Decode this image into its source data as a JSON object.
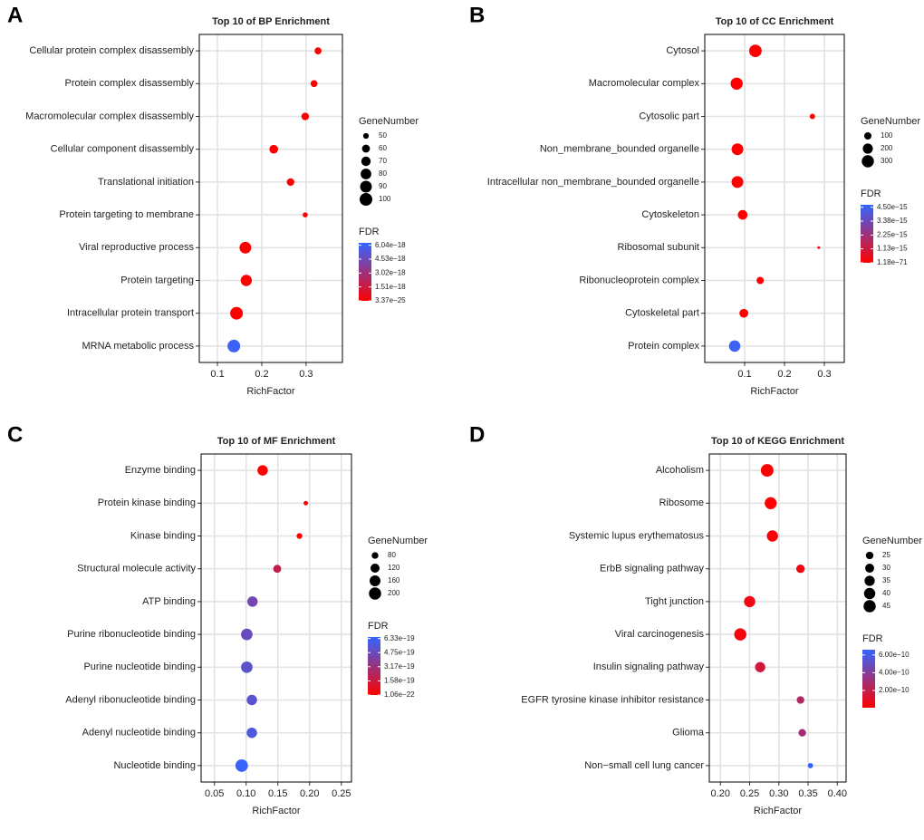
{
  "chart_data": [
    {
      "type": "bubble",
      "label": "A",
      "title": "Top 10 of BP Enrichment",
      "xlabel": "RichFactor",
      "categories": [
        "Cellular protein complex disassembly",
        "Protein complex disassembly",
        "Macromolecular complex disassembly",
        "Cellular component disassembly",
        "Translational initiation",
        "Protein targeting to membrane",
        "Viral reproductive process",
        "Protein targeting",
        "Intracellular protein transport",
        "MRNA metabolic process"
      ],
      "values": [
        0.327,
        0.318,
        0.298,
        0.227,
        0.265,
        0.298,
        0.163,
        0.165,
        0.143,
        0.137
      ],
      "sizes": [
        55,
        55,
        58,
        65,
        58,
        48,
        90,
        85,
        100,
        100
      ],
      "fdr": [
        4e-22,
        3e-22,
        2e-22,
        5e-22,
        4e-25,
        1e-21,
        3e-24,
        8e-24,
        3.37e-25,
        6.04e-18
      ],
      "xlim": [
        0.059,
        0.382
      ],
      "xticks": [
        0.1,
        0.2,
        0.3
      ],
      "size_title": "GeneNumber",
      "sizelim": [
        45,
        100
      ],
      "size_ticks": [
        50,
        60,
        70,
        80,
        90,
        100
      ],
      "color_title": "FDR",
      "low_color": "#ff0000",
      "high_color": "#3366ff",
      "fdrlim": [
        3.37e-25,
        6.3e-18
      ],
      "fdrticks": [
        {
          "value": 6.04e-18,
          "label": "6.04e−18"
        },
        {
          "value": 4.53e-18,
          "label": "4.53e−18"
        },
        {
          "value": 3.02e-18,
          "label": "3.02e−18"
        },
        {
          "value": 1.51e-18,
          "label": "1.51e−18"
        },
        {
          "value": 3.37e-25,
          "label": "3.37e−25"
        }
      ]
    },
    {
      "type": "bubble",
      "label": "B",
      "title": "Top 10 of CC Enrichment",
      "xlabel": "RichFactor",
      "categories": [
        "Cytosol",
        "Macromolecular complex",
        "Cytosolic part",
        "Non_membrane_bounded organelle",
        "Intracellular non_membrane_bounded organelle",
        "Cytoskeleton",
        "Ribosomal subunit",
        "Ribonucleoprotein complex",
        "Cytoskeletal part",
        "Protein complex"
      ],
      "values": [
        0.127,
        0.08,
        0.27,
        0.082,
        0.082,
        0.095,
        0.286,
        0.139,
        0.098,
        0.075
      ],
      "sizes": [
        320,
        300,
        60,
        280,
        280,
        180,
        40,
        100,
        150,
        260
      ],
      "fdr": [
        1.18e-71,
        5e-60,
        2e-40,
        1e-55,
        1e-54,
        3e-30,
        5e-35,
        2e-30,
        4e-25,
        4.5e-15
      ],
      "xlim": [
        0.0,
        0.35
      ],
      "xticks": [
        0.1,
        0.2,
        0.3
      ],
      "size_title": "GeneNumber",
      "sizelim": [
        40,
        330
      ],
      "size_ticks": [
        100,
        200,
        300
      ],
      "color_title": "FDR",
      "low_color": "#ff0000",
      "high_color": "#3366ff",
      "fdrlim": [
        1.18e-71,
        4.7e-15
      ],
      "fdrticks": [
        {
          "value": 4.5e-15,
          "label": "4.50e−15"
        },
        {
          "value": 3.38e-15,
          "label": "3.38e−15"
        },
        {
          "value": 2.25e-15,
          "label": "2.25e−15"
        },
        {
          "value": 1.13e-15,
          "label": "1.13e−15"
        },
        {
          "value": 1.18e-71,
          "label": "1.18e−71"
        }
      ]
    },
    {
      "type": "bubble",
      "label": "C",
      "title": "Top 10 of MF Enrichment",
      "xlabel": "RichFactor",
      "categories": [
        "Enzyme binding",
        "Protein kinase binding",
        "Kinase binding",
        "Structural molecule activity",
        "ATP binding",
        "Purine ribonucleotide binding",
        "Purine nucleotide binding",
        "Adenyl ribonucleotide binding",
        "Adenyl nucleotide binding",
        "Nucleotide binding"
      ],
      "values": [
        0.126,
        0.194,
        0.184,
        0.149,
        0.11,
        0.101,
        0.101,
        0.109,
        0.109,
        0.093
      ],
      "sizes": [
        150,
        60,
        70,
        100,
        150,
        180,
        180,
        150,
        150,
        210
      ],
      "fdr": [
        1.06e-22,
        5e-21,
        3e-21,
        2e-19,
        4.5e-19,
        4.8e-19,
        5.2e-19,
        5.3e-19,
        5.6e-19,
        6.3e-19
      ],
      "xlim": [
        0.029,
        0.266
      ],
      "xticks": [
        {
          "value": 0.05,
          "label": "0.05"
        },
        {
          "value": 0.1,
          "label": "0.10"
        },
        {
          "value": 0.15,
          "label": "0.15"
        },
        {
          "value": 0.2,
          "label": "0.20"
        },
        {
          "value": 0.25,
          "label": "0.25"
        }
      ],
      "size_title": "GeneNumber",
      "sizelim": [
        55,
        215
      ],
      "size_ticks": [
        80,
        120,
        160,
        200
      ],
      "color_title": "FDR",
      "low_color": "#ff0000",
      "high_color": "#3366ff",
      "fdrlim": [
        1.06e-22,
        6.5e-19
      ],
      "fdrticks": [
        {
          "value": 6.33e-19,
          "label": "6.33e−19"
        },
        {
          "value": 4.75e-19,
          "label": "4.75e−19"
        },
        {
          "value": 3.17e-19,
          "label": "3.17e−19"
        },
        {
          "value": 1.58e-19,
          "label": "1.58e−19"
        },
        {
          "value": 1.06e-22,
          "label": "1.06e−22"
        }
      ]
    },
    {
      "type": "bubble",
      "label": "D",
      "title": "Top 10 of KEGG Enrichment",
      "xlabel": "RichFactor",
      "categories": [
        "Alcoholism",
        "Ribosome",
        "Systemic lupus erythematosus",
        "ErbB signaling pathway",
        "Tight junction",
        "Viral carcinogenesis",
        "Insulin signaling pathway",
        "EGFR tyrosine kinase inhibitor resistance",
        "Glioma",
        "Non−small cell lung cancer"
      ],
      "values": [
        0.28,
        0.286,
        0.289,
        0.337,
        0.25,
        0.234,
        0.268,
        0.337,
        0.34,
        0.354
      ],
      "sizes": [
        48,
        44,
        40,
        28,
        40,
        45,
        35,
        25,
        25,
        20
      ],
      "fdr": [
        5e-12,
        1e-11,
        2e-11,
        5e-11,
        6e-11,
        4e-11,
        1.6e-10,
        2.6e-10,
        3e-10,
        6.5e-10
      ],
      "xlim": [
        0.181,
        0.415
      ],
      "xticks": [
        {
          "value": 0.2,
          "label": "0.20"
        },
        {
          "value": 0.25,
          "label": "0.25"
        },
        {
          "value": 0.3,
          "label": "0.30"
        },
        {
          "value": 0.35,
          "label": "0.35"
        },
        {
          "value": 0.4,
          "label": "0.40"
        }
      ],
      "size_title": "GeneNumber",
      "sizelim": [
        18,
        48
      ],
      "size_ticks": [
        25,
        30,
        35,
        40,
        45
      ],
      "color_title": "FDR",
      "low_color": "#ff0000",
      "high_color": "#3366ff",
      "fdrlim": [
        5e-12,
        6.6e-10
      ],
      "fdrticks": [
        {
          "value": 6e-10,
          "label": "6.00e−10"
        },
        {
          "value": 4e-10,
          "label": "4.00e−10"
        },
        {
          "value": 2e-10,
          "label": "2.00e−10"
        }
      ]
    }
  ]
}
